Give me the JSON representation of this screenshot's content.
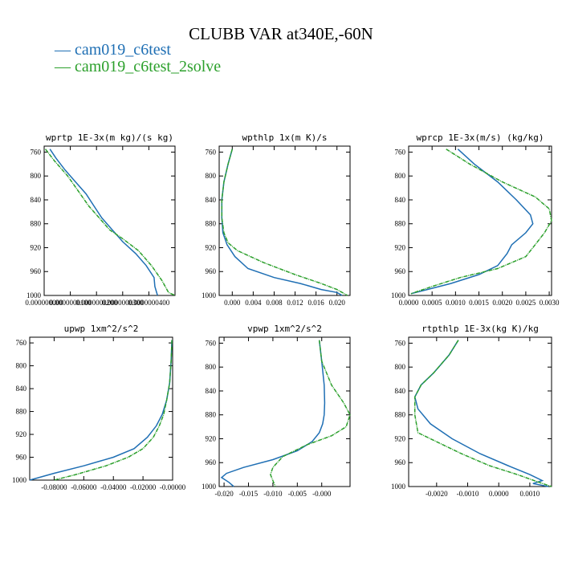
{
  "title": "CLUBB VAR at340E,-60N",
  "legend": [
    {
      "label": "— cam019_c6test",
      "color": "#1f6fb4"
    },
    {
      "label": "— cam019_c6test_2solve",
      "color": "#2ca02c"
    }
  ],
  "chart_data": [
    {
      "type": "line",
      "title": "wprtp  1E-3x(m kg)/(s kg)",
      "xlim": [
        0.0,
        5e-08
      ],
      "ylim": [
        1000,
        750
      ],
      "xticks": [
        0.0,
        1e-08,
        2e-08,
        3e-08,
        4e-08
      ],
      "xtick_labels": [
        "0.000000000",
        "0.0000000100",
        "0.0000000200",
        "0.0000000300",
        "0.0000000400"
      ],
      "yticks": [
        760,
        800,
        840,
        880,
        920,
        960,
        1000
      ],
      "ytick_labels": [
        "760",
        "800",
        "840",
        "880",
        "920",
        "960",
        "1000"
      ],
      "series": [
        {
          "name": "cam019_c6test",
          "color": "#1f6fb4",
          "x": [
            2.2e-09,
            4.5e-09,
            8e-09,
            1.2e-08,
            1.6e-08,
            1.9e-08,
            2.2e-08,
            2.6e-08,
            3e-08,
            3.5e-08,
            3.9e-08,
            4.2e-08,
            4.23e-08,
            4.33e-08
          ],
          "y": [
            755,
            770,
            790,
            810,
            830,
            850,
            870,
            890,
            910,
            930,
            950,
            970,
            985,
            1000
          ]
        },
        {
          "name": "cam019_c6test_2solve",
          "color": "#2ca02c",
          "x": [
            5e-10,
            4e-09,
            9e-09,
            1.3e-08,
            1.7e-08,
            2.1e-08,
            2.5e-08,
            3e-08,
            3.6e-08,
            4.1e-08,
            4.5e-08,
            4.75e-08,
            5e-08
          ],
          "y": [
            755,
            775,
            800,
            825,
            850,
            870,
            890,
            905,
            925,
            950,
            975,
            995,
            1000
          ]
        }
      ]
    },
    {
      "type": "line",
      "title": "wpthlp  1x(m K)/s",
      "xlim": [
        -0.0025,
        0.0225
      ],
      "ylim": [
        1000,
        750
      ],
      "xticks": [
        0.0,
        0.004,
        0.008,
        0.012,
        0.016,
        0.02
      ],
      "xtick_labels": [
        "0.000",
        "0.004",
        "0.008",
        "0.012",
        "0.016",
        "0.020"
      ],
      "yticks": [
        760,
        800,
        840,
        880,
        920,
        960,
        1000
      ],
      "ytick_labels": [
        "760",
        "800",
        "840",
        "880",
        "920",
        "960",
        "1000"
      ],
      "series": [
        {
          "name": "cam019_c6test",
          "color": "#1f6fb4",
          "x": [
            0.0,
            -0.0008,
            -0.0016,
            -0.002,
            -0.002,
            -0.0018,
            -0.001,
            0.0005,
            0.003,
            0.008,
            0.013,
            0.017,
            0.02,
            0.021
          ],
          "y": [
            755,
            780,
            810,
            840,
            870,
            895,
            915,
            935,
            955,
            970,
            980,
            990,
            995,
            1000
          ]
        },
        {
          "name": "cam019_c6test_2solve",
          "color": "#2ca02c",
          "x": [
            0.0,
            -0.0008,
            -0.0016,
            -0.002,
            -0.002,
            -0.0016,
            -0.0008,
            0.001,
            0.006,
            0.012,
            0.017,
            0.02,
            0.022
          ],
          "y": [
            755,
            780,
            810,
            840,
            870,
            895,
            912,
            925,
            945,
            965,
            980,
            990,
            1000
          ]
        }
      ]
    },
    {
      "type": "line",
      "title": "wprcp  1E-3x(m/s) (kg/kg)",
      "xlim": [
        0.0,
        0.00305
      ],
      "ylim": [
        1000,
        750
      ],
      "xticks": [
        0.0,
        0.0005,
        0.001,
        0.0015,
        0.002,
        0.0025,
        0.003
      ],
      "xtick_labels": [
        "0.0000",
        "0.0005",
        "0.0010",
        "0.0015",
        "0.0020",
        "0.0025",
        "0.0030"
      ],
      "yticks": [
        760,
        800,
        840,
        880,
        920,
        960,
        1000
      ],
      "ytick_labels": [
        "760",
        "800",
        "840",
        "880",
        "920",
        "960",
        "1000"
      ],
      "series": [
        {
          "name": "cam019_c6test",
          "color": "#1f6fb4",
          "x": [
            0.00105,
            0.0014,
            0.0019,
            0.0023,
            0.0026,
            0.00265,
            0.0025,
            0.0022,
            0.0021,
            0.0019,
            0.0015,
            0.0009,
            0.0004,
            5e-05
          ],
          "y": [
            755,
            780,
            810,
            840,
            865,
            880,
            895,
            915,
            930,
            950,
            965,
            980,
            990,
            997
          ]
        },
        {
          "name": "cam019_c6test_2solve",
          "color": "#2ca02c",
          "x": [
            0.0008,
            0.0013,
            0.002,
            0.0027,
            0.003,
            0.00305,
            0.0029,
            0.0027,
            0.0025,
            0.0019,
            0.0011,
            0.0005,
            5e-05
          ],
          "y": [
            755,
            780,
            810,
            835,
            855,
            875,
            895,
            915,
            935,
            955,
            970,
            985,
            997
          ]
        }
      ]
    },
    {
      "type": "line",
      "title": "upwp  1xm^2/s^2",
      "xlim": [
        -0.0965,
        0.0
      ],
      "ylim": [
        1000,
        750
      ],
      "xticks": [
        -0.08,
        -0.06,
        -0.04,
        -0.02,
        0.0
      ],
      "xtick_labels": [
        "-0.08000",
        "-0.06000",
        "-0.04000",
        "-0.02000",
        "-0.00000"
      ],
      "yticks": [
        760,
        800,
        840,
        880,
        920,
        960,
        1000
      ],
      "ytick_labels": [
        "760",
        "800",
        "840",
        "880",
        "920",
        "960",
        "1000"
      ],
      "series": [
        {
          "name": "cam019_c6test",
          "color": "#1f6fb4",
          "x": [
            -0.0005,
            -0.001,
            -0.002,
            -0.004,
            -0.007,
            -0.011,
            -0.017,
            -0.026,
            -0.04,
            -0.06,
            -0.08,
            -0.0965
          ],
          "y": [
            755,
            790,
            830,
            860,
            885,
            905,
            925,
            945,
            960,
            975,
            988,
            1000
          ]
        },
        {
          "name": "cam019_c6test_2solve",
          "color": "#2ca02c",
          "x": [
            -0.0005,
            -0.001,
            -0.002,
            -0.004,
            -0.006,
            -0.009,
            -0.013,
            -0.02,
            -0.03,
            -0.045,
            -0.065,
            -0.08
          ],
          "y": [
            755,
            790,
            830,
            860,
            885,
            905,
            925,
            945,
            960,
            975,
            990,
            1000
          ]
        }
      ]
    },
    {
      "type": "line",
      "title": "vpwp  1xm^2/s^2",
      "xlim": [
        -0.021,
        0.0058
      ],
      "ylim": [
        1000,
        750
      ],
      "xticks": [
        -0.02,
        -0.015,
        -0.01,
        -0.005,
        0.0
      ],
      "xtick_labels": [
        "-0.020",
        "-0.015",
        "-0.010",
        "-0.005",
        "-0.000"
      ],
      "yticks": [
        760,
        800,
        840,
        880,
        920,
        960,
        1000
      ],
      "ytick_labels": [
        "760",
        "800",
        "840",
        "880",
        "920",
        "960",
        "1000"
      ],
      "series": [
        {
          "name": "cam019_c6test",
          "color": "#1f6fb4",
          "x": [
            -0.0005,
            0.0,
            0.0005,
            0.0006,
            0.0005,
            0.0002,
            -0.0005,
            -0.002,
            -0.005,
            -0.01,
            -0.016,
            -0.0195,
            -0.0205,
            -0.019,
            -0.018
          ],
          "y": [
            755,
            790,
            830,
            860,
            880,
            895,
            910,
            925,
            940,
            955,
            968,
            978,
            985,
            993,
            1000
          ]
        },
        {
          "name": "cam019_c6test_2solve",
          "color": "#2ca02c",
          "x": [
            -0.0005,
            0.0,
            0.002,
            0.0045,
            0.0058,
            0.005,
            0.002,
            -0.003,
            -0.008,
            -0.01,
            -0.0105,
            -0.01,
            -0.0095
          ],
          "y": [
            755,
            790,
            830,
            860,
            880,
            900,
            915,
            930,
            950,
            968,
            980,
            990,
            1000
          ]
        }
      ]
    },
    {
      "type": "line",
      "title": "rtpthlp  1E-3x(kg K)/kg",
      "xlim": [
        -0.0029,
        0.0017
      ],
      "ylim": [
        1000,
        750
      ],
      "xticks": [
        -0.002,
        -0.001,
        0.0,
        0.001
      ],
      "xtick_labels": [
        "-0.0020",
        "-0.0010",
        "0.0000",
        "0.0010"
      ],
      "yticks": [
        760,
        800,
        840,
        880,
        920,
        960,
        1000
      ],
      "ytick_labels": [
        "760",
        "800",
        "840",
        "880",
        "920",
        "960",
        "1000"
      ],
      "series": [
        {
          "name": "cam019_c6test",
          "color": "#1f6fb4",
          "x": [
            -0.0013,
            -0.0016,
            -0.0021,
            -0.0025,
            -0.0027,
            -0.0026,
            -0.0022,
            -0.0015,
            -0.0006,
            0.0003,
            0.001,
            0.0014,
            0.0011,
            0.0016
          ],
          "y": [
            755,
            780,
            810,
            830,
            850,
            870,
            895,
            920,
            945,
            965,
            980,
            990,
            995,
            1000
          ]
        },
        {
          "name": "cam019_c6test_2solve",
          "color": "#2ca02c",
          "x": [
            -0.0013,
            -0.0016,
            -0.0021,
            -0.0025,
            -0.0027,
            -0.0027,
            -0.0026,
            -0.002,
            -0.0012,
            -0.0003,
            0.0006,
            0.0013,
            0.0017
          ],
          "y": [
            755,
            780,
            810,
            830,
            850,
            880,
            910,
            925,
            945,
            965,
            980,
            993,
            1000
          ]
        }
      ]
    }
  ]
}
